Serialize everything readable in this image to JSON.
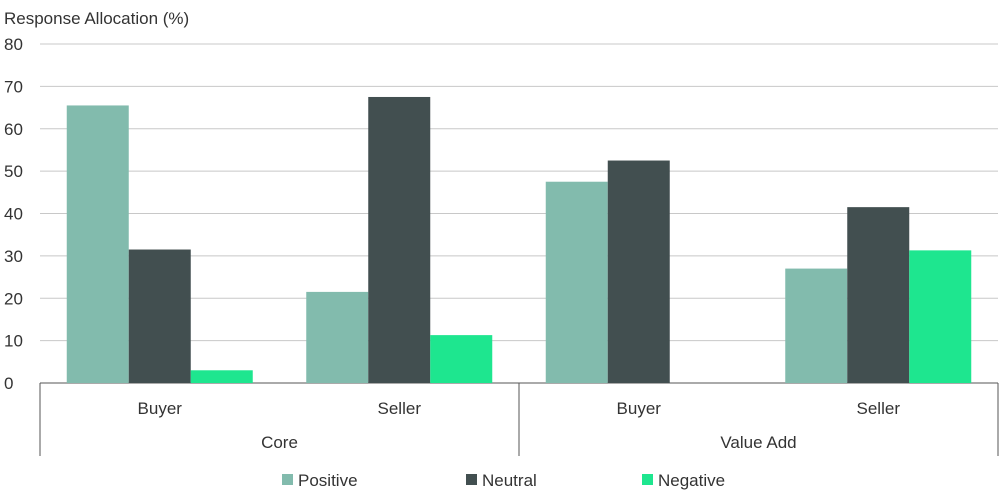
{
  "chart_data": {
    "type": "bar",
    "ylabel": "Response Allocation (%)",
    "ylim": [
      0,
      80
    ],
    "yticks": [
      0,
      10,
      20,
      30,
      40,
      50,
      60,
      70,
      80
    ],
    "grid": true,
    "legend_position": "bottom",
    "groups": [
      {
        "label": "Core",
        "categories": [
          "Buyer",
          "Seller"
        ]
      },
      {
        "label": "Value Add",
        "categories": [
          "Buyer",
          "Seller"
        ]
      }
    ],
    "categories": [
      "Buyer",
      "Seller",
      "Buyer",
      "Seller"
    ],
    "series": [
      {
        "name": "Positive",
        "color": "#82bbad",
        "values": [
          65.5,
          21.5,
          47.5,
          27
        ]
      },
      {
        "name": "Neutral",
        "color": "#424f50",
        "values": [
          31.5,
          67.5,
          52.5,
          41.5
        ]
      },
      {
        "name": "Negative",
        "color": "#1ee68f",
        "values": [
          3,
          11.3,
          0,
          31.3
        ]
      }
    ]
  }
}
